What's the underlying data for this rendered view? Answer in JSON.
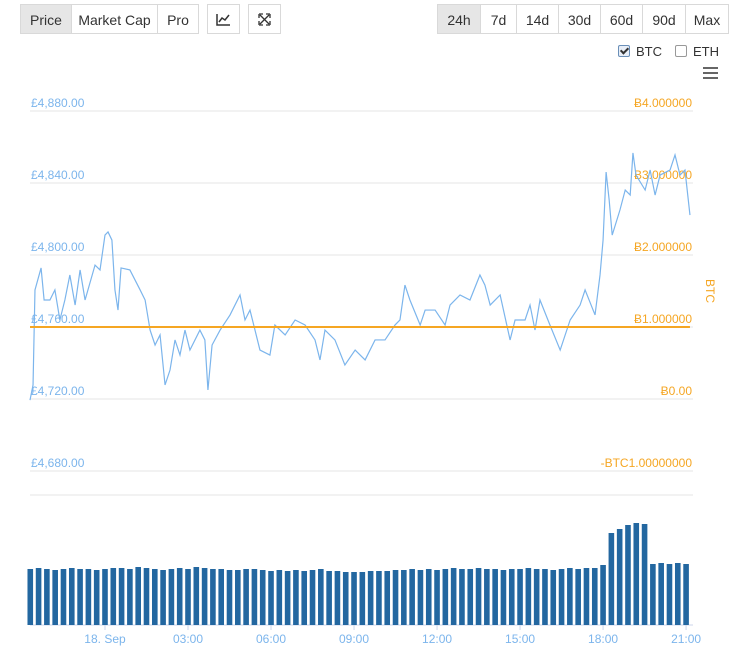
{
  "toolbar": {
    "views": [
      {
        "label": "Price",
        "active": true
      },
      {
        "label": "Market Cap",
        "active": false
      },
      {
        "label": "Pro",
        "active": false
      }
    ],
    "ranges": [
      {
        "label": "24h",
        "active": true
      },
      {
        "label": "7d",
        "active": false
      },
      {
        "label": "14d",
        "active": false
      },
      {
        "label": "30d",
        "active": false
      },
      {
        "label": "60d",
        "active": false
      },
      {
        "label": "90d",
        "active": false
      },
      {
        "label": "Max",
        "active": false
      }
    ]
  },
  "legend_options": [
    {
      "label": "BTC",
      "checked": true
    },
    {
      "label": "ETH",
      "checked": false
    }
  ],
  "chart_data": [
    {
      "type": "line",
      "x": [
        -2.71,
        -2.6,
        -2.53,
        -2.31,
        -2.2,
        -1.99,
        -1.81,
        -1.63,
        -1.45,
        -1.27,
        -1.08,
        -0.9,
        -0.72,
        -0.36,
        -0.18,
        0,
        0.11,
        0.25,
        0.36,
        0.47,
        0.58,
        0.9,
        1.27,
        1.45,
        1.63,
        1.81,
        1.99,
        2.17,
        2.35,
        2.53,
        2.71,
        2.89,
        3.07,
        3.43,
        3.61,
        3.72,
        3.87,
        4.16,
        4.52,
        4.88,
        5.06,
        5.24,
        5.6,
        5.96,
        6.14,
        6.51,
        6.87,
        7.23,
        7.59,
        7.77,
        7.95,
        8.31,
        8.67,
        9.04,
        9.4,
        9.76,
        10.12,
        10.48,
        10.66,
        10.84,
        11.02,
        11.39,
        11.57,
        11.93,
        12.29,
        12.47,
        12.83,
        13.19,
        13.55,
        13.73,
        13.92,
        14.28,
        14.64,
        14.82,
        15.18,
        15.36,
        15.54,
        15.72,
        16.08,
        16.45,
        16.81,
        17.17,
        17.35,
        17.71,
        17.89,
        18,
        18.11,
        18.22,
        18.33,
        18.61,
        18.8,
        18.98,
        19.08,
        19.19,
        19.52,
        19.7,
        19.88,
        20.06,
        20.42,
        20.6,
        20.78,
        20.96,
        21.14
      ],
      "series": [
        {
          "color": "#7cb5ec",
          "values": [
            4719.4,
            4727.8,
            4780.6,
            4792.8,
            4775.0,
            4775.0,
            4780.6,
            4763.9,
            4775.0,
            4788.9,
            4772.2,
            4791.7,
            4775.0,
            4794.4,
            4791.7,
            4811.1,
            4812.8,
            4808.3,
            4780.6,
            4769.4,
            4792.8,
            4791.7,
            4780.6,
            4775.0,
            4758.3,
            4750.0,
            4755.6,
            4727.8,
            4736.1,
            4752.8,
            4744.4,
            4758.3,
            4747.2,
            4758.3,
            4752.8,
            4725.0,
            4750.0,
            4758.3,
            4766.7,
            4777.8,
            4763.9,
            4769.4,
            4747.2,
            4744.4,
            4761.1,
            4755.6,
            4763.9,
            4761.1,
            4752.8,
            4741.7,
            4758.3,
            4752.8,
            4738.9,
            4747.2,
            4741.7,
            4752.8,
            4752.8,
            4761.1,
            4763.9,
            4783.3,
            4775.0,
            4761.1,
            4769.4,
            4769.4,
            4761.1,
            4772.2,
            4777.8,
            4775.0,
            4788.9,
            4783.3,
            4772.2,
            4777.8,
            4752.8,
            4763.9,
            4763.9,
            4772.2,
            4758.3,
            4775.0,
            4761.1,
            4747.2,
            4763.9,
            4772.2,
            4780.6,
            4766.7,
            4788.9,
            4808.3,
            4846.1,
            4830.6,
            4811.1,
            4825.0,
            4836.1,
            4833.3,
            4856.7,
            4844.4,
            4836.1,
            4847.2,
            4833.3,
            4844.4,
            4847.2,
            4855.6,
            4844.4,
            4847.2,
            4822.2
          ]
        },
        {
          "color": "#f5a623",
          "axis": "y2",
          "values": [
            1,
            1,
            1,
            1,
            1,
            1,
            1,
            1,
            1,
            1,
            1,
            1,
            1,
            1,
            1,
            1,
            1,
            1,
            1,
            1,
            1,
            1,
            1,
            1,
            1,
            1,
            1,
            1,
            1,
            1,
            1,
            1,
            1,
            1,
            1,
            1,
            1,
            1,
            1,
            1,
            1,
            1,
            1,
            1,
            1,
            1,
            1,
            1,
            1,
            1,
            1,
            1,
            1,
            1,
            1,
            1,
            1,
            1,
            1,
            1,
            1,
            1,
            1,
            1,
            1,
            1,
            1,
            1,
            1,
            1,
            1,
            1,
            1,
            1,
            1,
            1,
            1,
            1,
            1,
            1,
            1,
            1,
            1,
            1,
            1,
            1,
            1,
            1,
            1,
            1,
            1,
            1,
            1,
            1,
            1,
            1,
            1,
            1,
            1,
            1,
            1,
            1,
            1
          ]
        }
      ],
      "xlim": [
        -2.71,
        21.25
      ],
      "ylim": [
        4680,
        4880
      ],
      "yticks": [
        {
          "value": 4880,
          "label": "£4,880.00"
        },
        {
          "value": 4840,
          "label": "£4,840.00"
        },
        {
          "value": 4800,
          "label": "£4,800.00"
        },
        {
          "value": 4760,
          "label": "£4,760.00"
        },
        {
          "value": 4720,
          "label": "£4,720.00"
        },
        {
          "value": 4680,
          "label": "£4,680.00"
        }
      ],
      "y2lim": [
        -1,
        4
      ],
      "y2ticks": [
        {
          "value": 4,
          "label": "Ƀ4.000000"
        },
        {
          "value": 3,
          "label": "Ƀ3.000000"
        },
        {
          "value": 2,
          "label": "Ƀ2.000000"
        },
        {
          "value": 1,
          "label": "Ƀ1.000000"
        },
        {
          "value": 0,
          "label": "Ƀ0.00"
        },
        {
          "value": -1,
          "label": "-BTC1.00000000"
        }
      ],
      "y2label": "BTC",
      "grid": true
    },
    {
      "type": "bar",
      "x": [
        -2.7,
        -2.4,
        -2.1,
        -1.8,
        -1.5,
        -1.2,
        -0.9,
        -0.6,
        -0.3,
        0,
        0.3,
        0.6,
        0.9,
        1.2,
        1.5,
        1.8,
        2.1,
        2.4,
        2.7,
        3,
        3.3,
        3.6,
        3.9,
        4.2,
        4.5,
        4.8,
        5.1,
        5.4,
        5.7,
        6,
        6.3,
        6.6,
        6.9,
        7.2,
        7.5,
        7.8,
        8.1,
        8.4,
        8.7,
        9,
        9.3,
        9.6,
        9.9,
        10.2,
        10.5,
        10.8,
        11.1,
        11.4,
        11.7,
        12,
        12.3,
        12.6,
        12.9,
        13.2,
        13.5,
        13.8,
        14.1,
        14.4,
        14.7,
        15,
        15.3,
        15.6,
        15.9,
        16.2,
        16.5,
        16.8,
        17.1,
        17.4,
        17.7,
        18,
        18.3,
        18.6,
        18.9,
        19.2,
        19.5,
        19.8,
        20.1,
        20.4,
        20.7,
        21.0
      ],
      "values": [
        56,
        57,
        56,
        55,
        56,
        57,
        56,
        56,
        55,
        56,
        57,
        57,
        56,
        58,
        57,
        56,
        55,
        56,
        57,
        56,
        58,
        57,
        56,
        56,
        55,
        55,
        56,
        56,
        55,
        54,
        55,
        54,
        55,
        54,
        55,
        56,
        54,
        54,
        53,
        53,
        53,
        54,
        54,
        54,
        55,
        55,
        56,
        55,
        56,
        55,
        56,
        57,
        56,
        56,
        57,
        56,
        56,
        55,
        56,
        56,
        57,
        56,
        56,
        55,
        56,
        57,
        56,
        57,
        57,
        60,
        92,
        96,
        100,
        102,
        101,
        61,
        62,
        61,
        62,
        61
      ],
      "color": "#2367a0",
      "xlim": [
        -2.71,
        21.25
      ],
      "ylim": [
        0,
        130
      ],
      "xticks": [
        {
          "value": 0,
          "label": "18. Sep"
        },
        {
          "value": 3,
          "label": "03:00"
        },
        {
          "value": 6,
          "label": "06:00"
        },
        {
          "value": 9,
          "label": "09:00"
        },
        {
          "value": 12,
          "label": "12:00"
        },
        {
          "value": 15,
          "label": "15:00"
        },
        {
          "value": 18,
          "label": "18:00"
        },
        {
          "value": 21,
          "label": "21:00"
        }
      ]
    }
  ]
}
